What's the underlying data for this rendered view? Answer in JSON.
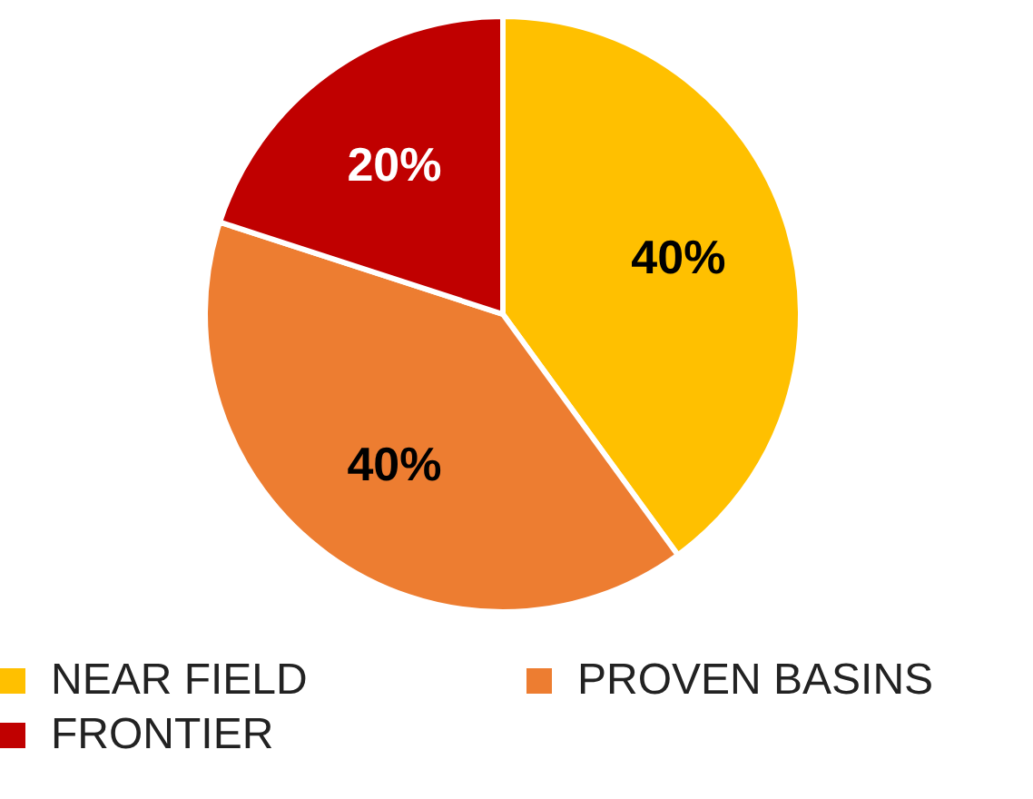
{
  "chart_data": {
    "type": "pie",
    "categories": [
      "NEAR FIELD",
      "PROVEN BASINS",
      "FRONTIER"
    ],
    "values": [
      40,
      40,
      20
    ],
    "colors": [
      "#ffc000",
      "#ed7d31",
      "#c00000"
    ],
    "value_labels": [
      "40%",
      "40%",
      "20%"
    ],
    "legend": "bottom"
  }
}
